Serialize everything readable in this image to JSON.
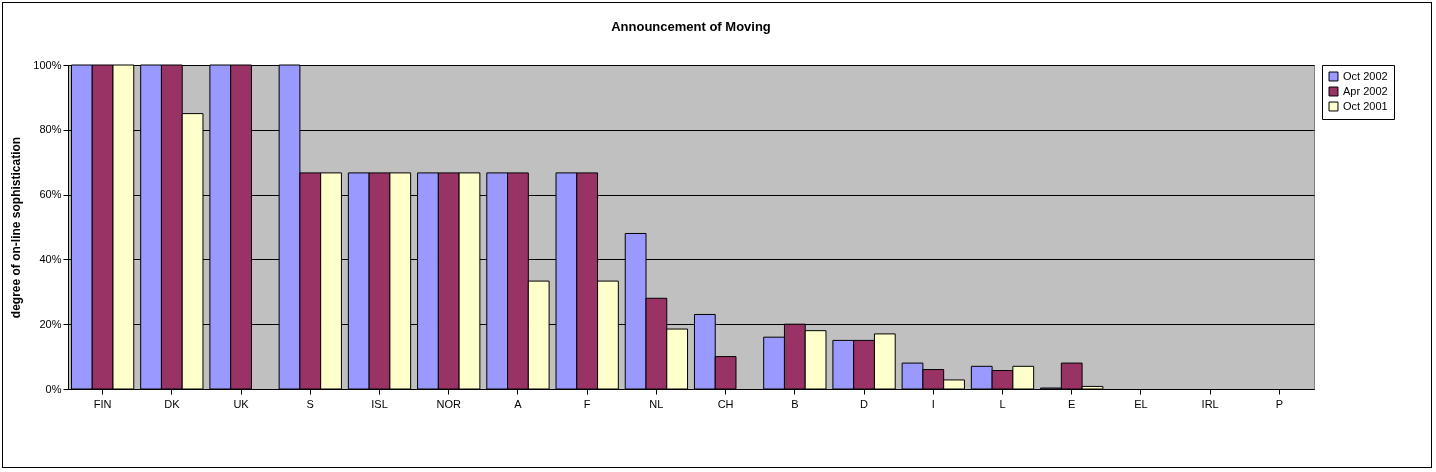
{
  "chart_data": {
    "type": "bar",
    "title": "Announcement of Moving",
    "ylabel": "degree of on-line sophistication",
    "categories": [
      "FIN",
      "DK",
      "UK",
      "S",
      "ISL",
      "NOR",
      "A",
      "F",
      "NL",
      "CH",
      "B",
      "D",
      "I",
      "L",
      "E",
      "EL",
      "IRL",
      "P"
    ],
    "series": [
      {
        "name": "Oct 2002",
        "color": "#9999ff",
        "values": [
          100,
          100,
          100,
          100,
          66.7,
          66.7,
          66.7,
          66.7,
          48,
          23,
          16,
          15,
          8,
          7,
          0.3,
          null,
          null,
          null
        ]
      },
      {
        "name": "Apr 2002",
        "color": "#993366",
        "values": [
          100,
          100,
          100,
          66.7,
          66.7,
          66.7,
          66.7,
          66.7,
          28,
          10,
          20,
          15,
          6,
          5.7,
          8,
          null,
          null,
          null
        ]
      },
      {
        "name": "Oct 2001",
        "color": "#ffffcc",
        "values": [
          100,
          85,
          null,
          66.7,
          66.7,
          66.7,
          33.3,
          33.3,
          18.5,
          null,
          18,
          17,
          2.8,
          7,
          0.8,
          null,
          null,
          null
        ]
      }
    ],
    "ylim": [
      0,
      100
    ],
    "yticks": [
      {
        "value": 0,
        "label": "0%"
      },
      {
        "value": 20,
        "label": "20%"
      },
      {
        "value": 40,
        "label": "40%"
      },
      {
        "value": 60,
        "label": "60%"
      },
      {
        "value": 80,
        "label": "80%"
      },
      {
        "value": 100,
        "label": "100%"
      }
    ],
    "grid": "y",
    "legend": "right"
  }
}
